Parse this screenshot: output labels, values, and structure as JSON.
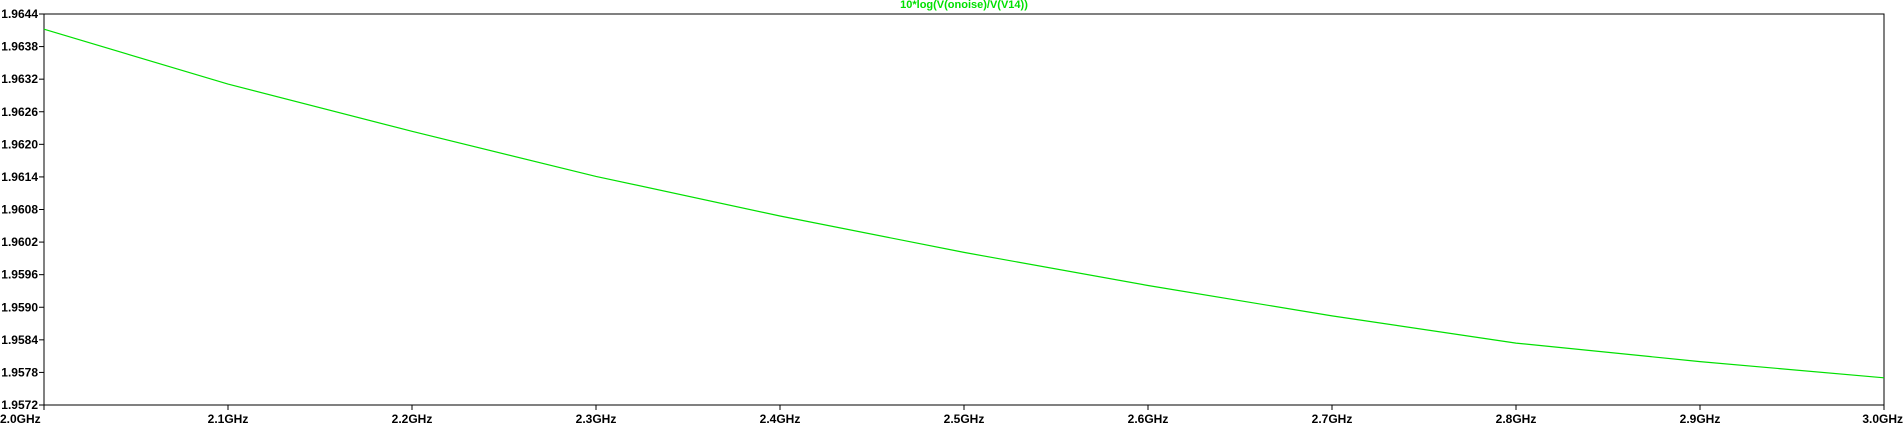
{
  "chart_data": {
    "type": "line",
    "title": "10*log(V(onoise)/V(V14))",
    "xlabel": "",
    "ylabel": "",
    "x_ticks": [
      "2.0GHz",
      "2.1GHz",
      "2.2GHz",
      "2.3GHz",
      "2.4GHz",
      "2.5GHz",
      "2.6GHz",
      "2.7GHz",
      "2.8GHz",
      "2.9GHz",
      "3.0GHz"
    ],
    "y_ticks": [
      "1.9644",
      "1.9638",
      "1.9632",
      "1.9626",
      "1.9620",
      "1.9614",
      "1.9608",
      "1.9602",
      "1.9596",
      "1.9590",
      "1.9584",
      "1.9578",
      "1.9572"
    ],
    "xlim": [
      2.0,
      3.0
    ],
    "ylim": [
      1.9572,
      1.9644
    ],
    "x_unit": "GHz",
    "grid": false,
    "colors": {
      "trace": "#00e000",
      "axes": "#000000",
      "background": "#ffffff"
    },
    "series": [
      {
        "x": [
          2.0,
          2.1,
          2.2,
          2.3,
          2.4,
          2.5,
          2.6,
          2.7,
          2.8,
          2.9,
          3.0
        ],
        "values": [
          1.96412,
          1.96311,
          1.96224,
          1.96141,
          1.96068,
          1.96001,
          1.9594,
          1.95884,
          1.95834,
          1.958,
          1.9577
        ]
      }
    ]
  }
}
